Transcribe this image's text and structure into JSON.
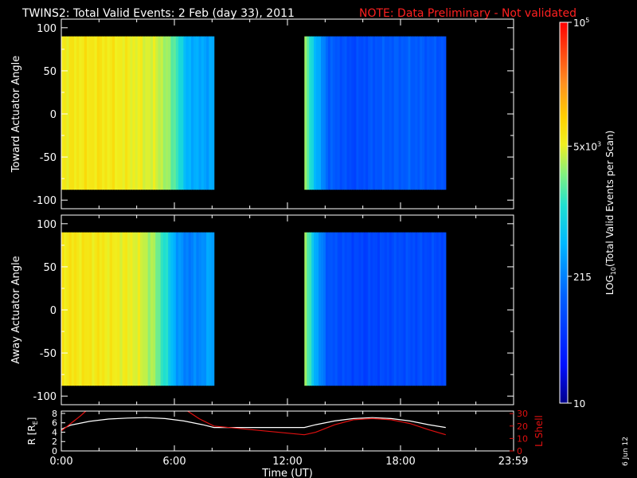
{
  "header": {
    "title": "TWINS2: Total Valid Events:  2 Feb (day  33), 2011",
    "note": "NOTE: Data Preliminary - Not validated"
  },
  "date_stamp": "6 Jun 12",
  "colors": {
    "background": "#000000",
    "foreground": "#ffffff",
    "note": "#ff2020",
    "lshell": "#e01010",
    "r_trace": "#ffffff"
  },
  "chart_data": [
    {
      "type": "heatmap",
      "ylabel": "Toward Actuator Angle",
      "ylim": [
        -110,
        110
      ],
      "y_ticks": [
        100,
        50,
        0,
        -50,
        -100
      ],
      "xlim": [
        0,
        24
      ],
      "angle_range": [
        -88,
        90
      ],
      "data_intervals": [
        [
          0.0,
          8.1
        ],
        [
          12.9,
          20.4
        ]
      ],
      "column_profile": [
        {
          "t": 0.0,
          "logc": 3.78
        },
        {
          "t": 2.0,
          "logc": 3.82
        },
        {
          "t": 4.0,
          "logc": 3.72
        },
        {
          "t": 5.2,
          "logc": 3.62
        },
        {
          "t": 6.0,
          "logc": 3.3
        },
        {
          "t": 6.5,
          "logc": 2.8
        },
        {
          "t": 7.0,
          "logc": 2.55
        },
        {
          "t": 7.4,
          "logc": 2.65
        },
        {
          "t": 7.8,
          "logc": 2.45
        },
        {
          "t": 8.1,
          "logc": 2.7
        },
        {
          "t": 12.9,
          "logc": 3.5
        },
        {
          "t": 13.2,
          "logc": 3.1
        },
        {
          "t": 13.6,
          "logc": 2.6
        },
        {
          "t": 14.2,
          "logc": 2.1
        },
        {
          "t": 15.5,
          "logc": 1.9
        },
        {
          "t": 17.0,
          "logc": 2.05
        },
        {
          "t": 18.5,
          "logc": 2.1
        },
        {
          "t": 20.4,
          "logc": 2.0
        }
      ]
    },
    {
      "type": "heatmap",
      "ylabel": "Away Actuator Angle",
      "ylim": [
        -110,
        110
      ],
      "y_ticks": [
        100,
        50,
        0,
        -50,
        -100
      ],
      "xlim": [
        0,
        24
      ],
      "angle_range": [
        -88,
        90
      ],
      "data_intervals": [
        [
          0.0,
          8.1
        ],
        [
          12.9,
          20.4
        ]
      ],
      "column_profile": [
        {
          "t": 0.0,
          "logc": 3.82
        },
        {
          "t": 2.0,
          "logc": 3.8
        },
        {
          "t": 4.0,
          "logc": 3.7
        },
        {
          "t": 5.0,
          "logc": 3.45
        },
        {
          "t": 5.6,
          "logc": 3.0
        },
        {
          "t": 6.2,
          "logc": 2.45
        },
        {
          "t": 6.8,
          "logc": 2.3
        },
        {
          "t": 7.4,
          "logc": 2.4
        },
        {
          "t": 8.1,
          "logc": 2.6
        },
        {
          "t": 12.9,
          "logc": 3.55
        },
        {
          "t": 13.2,
          "logc": 3.1
        },
        {
          "t": 13.6,
          "logc": 2.5
        },
        {
          "t": 14.2,
          "logc": 2.0
        },
        {
          "t": 16.0,
          "logc": 1.85
        },
        {
          "t": 18.0,
          "logc": 1.95
        },
        {
          "t": 20.4,
          "logc": 1.9
        }
      ]
    },
    {
      "type": "line",
      "xlabel": "Time (UT)",
      "xlim": [
        0,
        24
      ],
      "x_ticks": [
        {
          "t": 0,
          "label": "0:00"
        },
        {
          "t": 6,
          "label": "6:00"
        },
        {
          "t": 12,
          "label": "12:00"
        },
        {
          "t": 18,
          "label": "18:00"
        },
        {
          "t": 23.98,
          "label": "23:59"
        }
      ],
      "ylabel_left": "R [R",
      "ylabel_left_sub": "E",
      "ylabel_left_tail": "]",
      "ylabel_right": "L Shell",
      "ylim_left": [
        0,
        8.5
      ],
      "yticks_left": [
        8,
        6,
        4,
        2,
        0
      ],
      "ylim_right": [
        0,
        32
      ],
      "yticks_right": [
        30,
        20,
        10,
        0
      ],
      "series": [
        {
          "axis": "left",
          "x": [
            0,
            0.5,
            1.5,
            2.5,
            3.5,
            4.5,
            5.5,
            6.5,
            7.5,
            8.1,
            12.9,
            13.5,
            14.5,
            15.5,
            16.5,
            17.5,
            18.5,
            19.5,
            20.4
          ],
          "y": [
            4.6,
            5.5,
            6.3,
            6.8,
            7.0,
            7.1,
            6.9,
            6.4,
            5.6,
            5.0,
            5.0,
            5.6,
            6.4,
            6.9,
            7.1,
            6.9,
            6.4,
            5.6,
            5.0
          ]
        },
        {
          "axis": "right",
          "x": [
            0,
            0.5,
            1.0,
            1.3
          ],
          "y": [
            16,
            22,
            28,
            32
          ]
        },
        {
          "axis": "right",
          "x": [
            6.7,
            7.3,
            8.1,
            12.9,
            13.5,
            14.5,
            15.5,
            16.5,
            17.5,
            18.5,
            19.5,
            20.4
          ],
          "y": [
            32,
            26,
            20,
            13,
            15,
            21,
            25,
            26,
            25,
            22,
            17,
            13
          ]
        }
      ]
    }
  ],
  "colorbar": {
    "label": "LOG",
    "label_sub": "10",
    "label_tail": "(Total Valid  Events per Scan)",
    "range_log": [
      1,
      5
    ],
    "ticks": [
      {
        "log": 5,
        "base": "10",
        "exp": "5"
      },
      {
        "log": 3.699,
        "base": "5x10",
        "exp": "3"
      },
      {
        "log": 2.332,
        "base": "215",
        "exp": ""
      },
      {
        "log": 1,
        "base": "10",
        "exp": ""
      }
    ]
  }
}
